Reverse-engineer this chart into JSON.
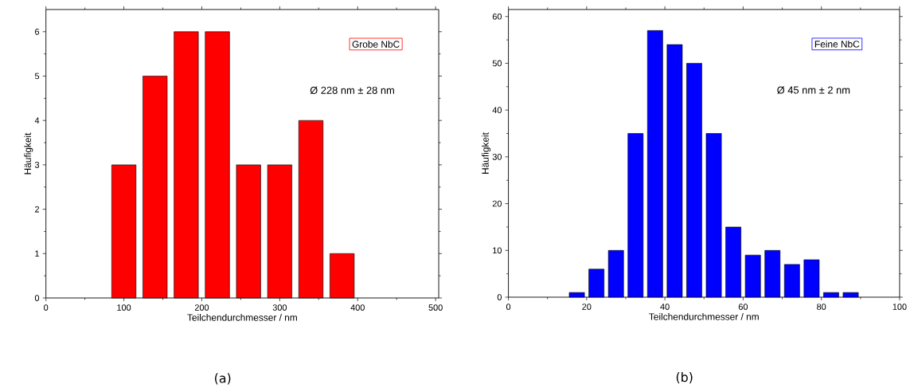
{
  "chart_data": [
    {
      "type": "bar",
      "xlabel": "Teilchendurchmesser / nm",
      "ylabel": "Häufigkeit",
      "x": [
        100,
        140,
        180,
        220,
        260,
        300,
        340,
        380
      ],
      "series": [
        {
          "name": "Grobe NbC",
          "color": "#ff0000",
          "values": [
            3,
            5,
            6,
            6,
            3,
            3,
            4,
            1
          ]
        }
      ],
      "xlim": [
        0,
        504
      ],
      "ylim": [
        0,
        6.5
      ],
      "xticks": [
        0,
        100,
        200,
        300,
        400,
        500
      ],
      "yticks": [
        0,
        1,
        2,
        3,
        4,
        5,
        6
      ],
      "legend": "top right",
      "annotations": [
        "Ø 228 nm ± 28 nm",
        "(a)"
      ]
    },
    {
      "type": "bar",
      "xlabel": "Teilchendurchmesser / nm",
      "ylabel": "Häufigkeit",
      "x": [
        17.5,
        22.5,
        27.5,
        32.5,
        37.5,
        42.5,
        47.5,
        52.5,
        57.5,
        62.5,
        67.5,
        72.5,
        77.5,
        82.5,
        87.5
      ],
      "series": [
        {
          "name": "Feine NbC",
          "color": "#0000ff",
          "values": [
            1,
            6,
            10,
            35,
            57,
            54,
            50,
            35,
            15,
            9,
            10,
            7,
            8,
            1,
            1
          ]
        }
      ],
      "xlim": [
        0,
        100
      ],
      "ylim": [
        0,
        61.5
      ],
      "xticks": [
        0,
        20,
        40,
        60,
        80,
        100
      ],
      "yticks": [
        0,
        10,
        20,
        30,
        40,
        50,
        60
      ],
      "legend": "top right",
      "annotations": [
        "Ø 45 nm ± 2 nm",
        "(b)"
      ]
    }
  ]
}
